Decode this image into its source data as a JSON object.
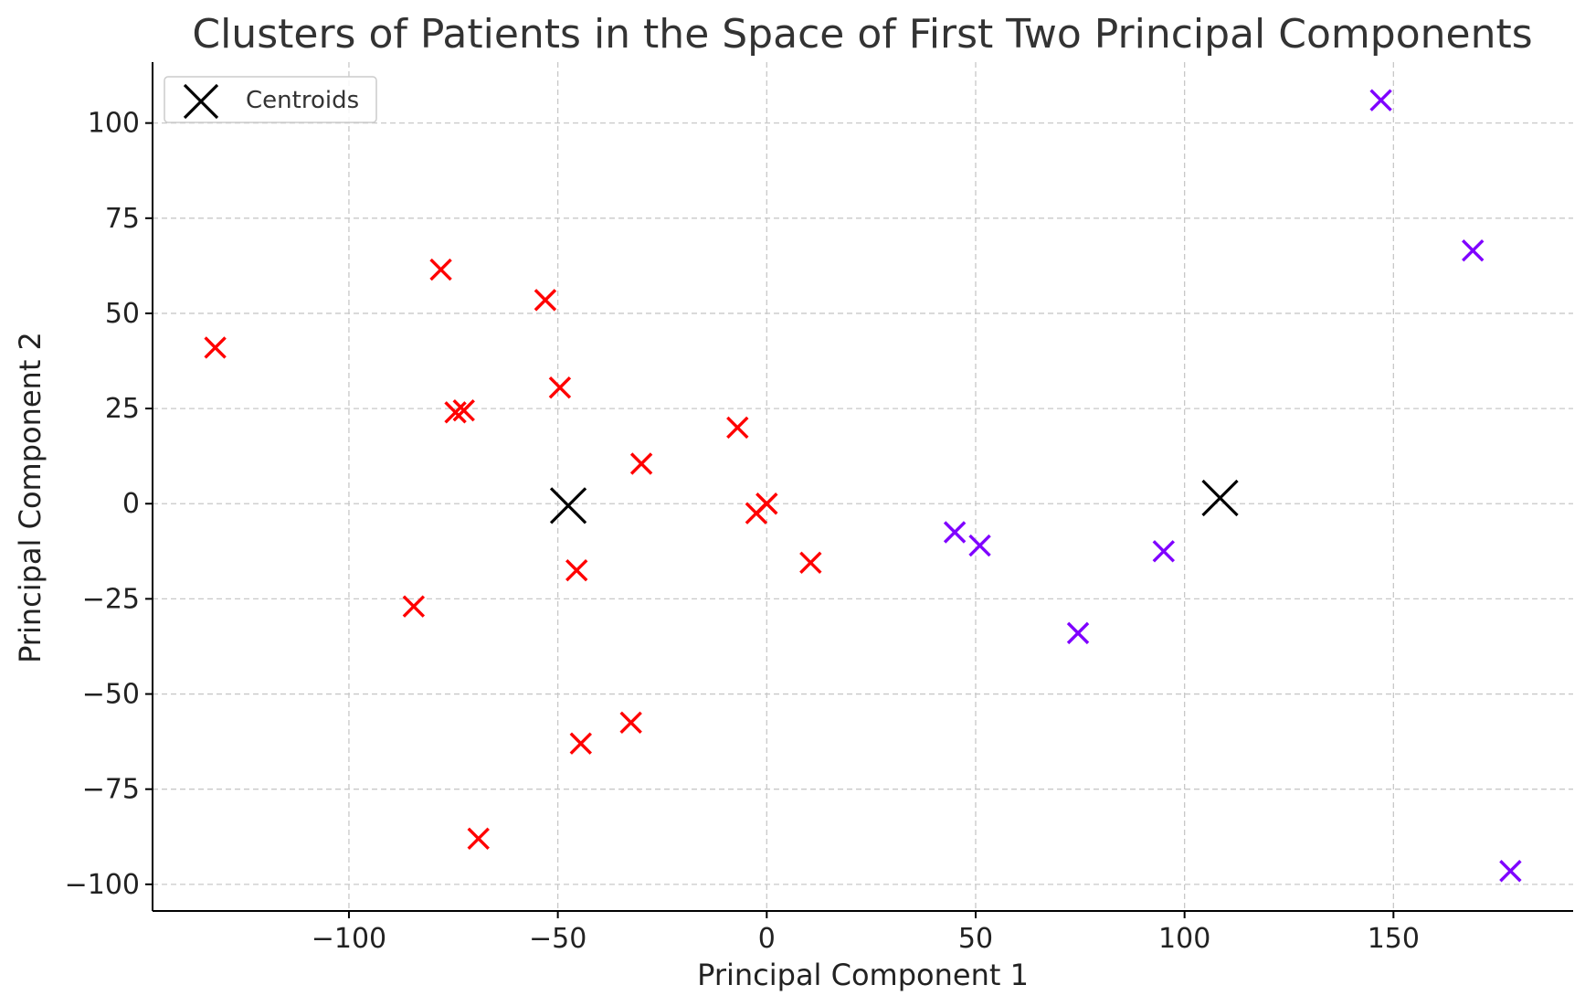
{
  "chart_data": {
    "type": "scatter",
    "title": "Clusters of Patients in the Space of First Two Principal Components",
    "xlabel": "Principal Component 1",
    "ylabel": "Principal Component 2",
    "xlim": [
      -147,
      193
    ],
    "ylim": [
      -107,
      116
    ],
    "xticks": [
      -100,
      -50,
      0,
      50,
      100,
      150
    ],
    "xtick_labels": [
      "−100",
      "−50",
      "0",
      "50",
      "100",
      "150"
    ],
    "yticks": [
      100,
      75,
      50,
      25,
      0,
      -25,
      -50,
      -75,
      -100
    ],
    "ytick_labels": [
      "100",
      "75",
      "50",
      "25",
      "0",
      "−25",
      "−50",
      "−75",
      "−100"
    ],
    "grid": true,
    "legend": {
      "location": "upper-left",
      "entries": [
        {
          "label": "Centroids",
          "marker": "x",
          "color": "#000000"
        }
      ]
    },
    "series": [
      {
        "color": "#ff0000",
        "marker": "x",
        "points": [
          [
            -132,
            41
          ],
          [
            -78,
            61.5
          ],
          [
            -53,
            53.5
          ],
          [
            -74.5,
            24
          ],
          [
            -72.5,
            24.5
          ],
          [
            -49.5,
            30.5
          ],
          [
            -30,
            10.5
          ],
          [
            -7,
            20
          ],
          [
            0,
            0
          ],
          [
            -2.5,
            -2.5
          ],
          [
            10.5,
            -15.5
          ],
          [
            -45.5,
            -17.5
          ],
          [
            -84.5,
            -27
          ],
          [
            -32.5,
            -57.5
          ],
          [
            -44.5,
            -63
          ],
          [
            -69,
            -88
          ]
        ]
      },
      {
        "color": "#7f00ff",
        "marker": "x",
        "points": [
          [
            147,
            106
          ],
          [
            169,
            66.5
          ],
          [
            45,
            -7.5
          ],
          [
            51,
            -11
          ],
          [
            95,
            -12.5
          ],
          [
            74.5,
            -34
          ],
          [
            178,
            -96.5
          ]
        ]
      },
      {
        "name": "Centroids",
        "color": "#000000",
        "marker": "x",
        "large": true,
        "points": [
          [
            -47.5,
            -0.5
          ],
          [
            108.5,
            1.5
          ]
        ]
      }
    ]
  }
}
